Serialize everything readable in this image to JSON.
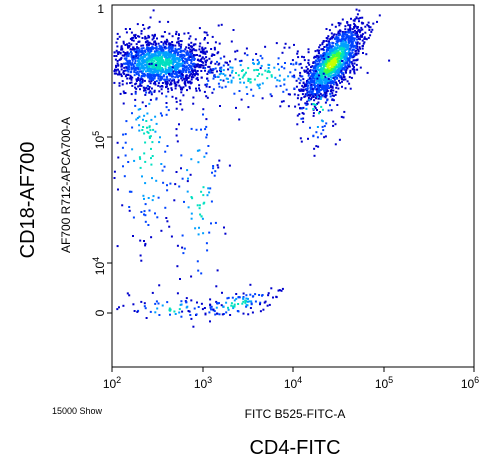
{
  "chart_data": {
    "type": "scatter",
    "title": "",
    "xlabel": "FITC B525-FITC-A",
    "ylabel": "AF700 R712-APCA700-A",
    "outer_xlabel": "CD4-FITC",
    "outer_ylabel": "CD18-AF700",
    "event_count_label": "15000 Show",
    "x_scale": "log",
    "x_range": [
      100,
      1000000
    ],
    "x_ticks": [
      {
        "base": "10",
        "exp": "2"
      },
      {
        "base": "10",
        "exp": "3"
      },
      {
        "base": "10",
        "exp": "4"
      },
      {
        "base": "10",
        "exp": "5"
      },
      {
        "base": "10",
        "exp": "6"
      }
    ],
    "y_scale": "biexponential",
    "y_ticks": [
      {
        "base": "10",
        "exp": "5"
      },
      {
        "base": "10",
        "exp": "4"
      },
      {
        "base": "0",
        "exp": ""
      }
    ],
    "y_top_label": "1",
    "grid": false,
    "colormap": "density (blue → cyan → green → yellow)",
    "colors": [
      "#0000cc",
      "#0044ff",
      "#00a0ff",
      "#00e0c0",
      "#40ff40",
      "#c8ff00"
    ],
    "populations": [
      {
        "name": "CD4-negative CD18-high",
        "x_center": 400,
        "y_center": 200000
      },
      {
        "name": "CD4-positive CD18-high",
        "x_center": 30000,
        "y_center": 200000
      },
      {
        "name": "low CD18 events",
        "x_center": 2000,
        "y_center": 0
      }
    ]
  }
}
